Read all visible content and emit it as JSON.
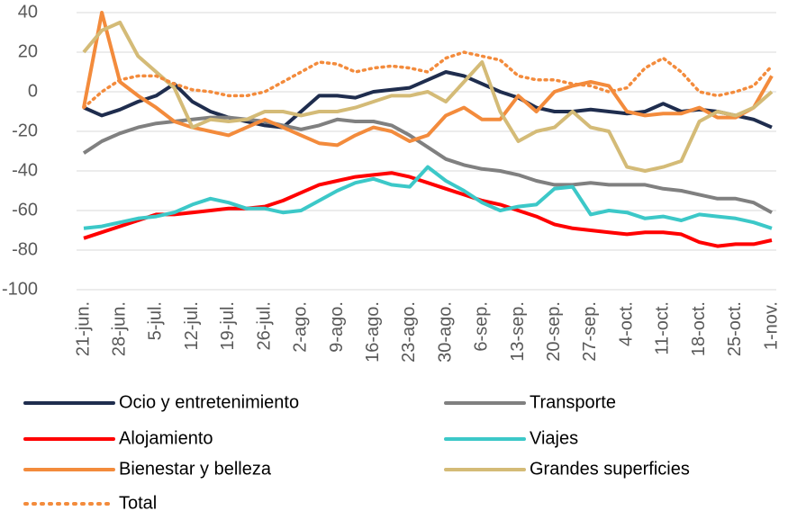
{
  "chart_data": {
    "type": "line",
    "categories": [
      "21-jun.",
      null,
      "28-jun.",
      null,
      "5-jul.",
      null,
      "12-jul.",
      null,
      "19-jul.",
      null,
      "26-jul.",
      null,
      "2-ago.",
      null,
      "9-ago.",
      null,
      "16-ago.",
      null,
      "23-ago.",
      null,
      "30-ago.",
      null,
      "6-sep.",
      null,
      "13-sep.",
      null,
      "20-sep.",
      null,
      "27-sep.",
      null,
      "4-oct.",
      null,
      "11-oct.",
      null,
      "18-oct.",
      null,
      "25-oct.",
      null,
      "1-nov."
    ],
    "ylim": [
      -100,
      40
    ],
    "yticks": [
      -100,
      -80,
      -60,
      -40,
      -20,
      0,
      20,
      40
    ],
    "grid": true,
    "series": [
      {
        "name": "Ocio y entretenimiento",
        "color": "#1f2d4e",
        "values": [
          -8,
          -12,
          -9,
          -5,
          -2,
          4,
          -5,
          -10,
          -13,
          -15,
          -17,
          -18,
          -10,
          -2,
          -2,
          -3,
          0,
          1,
          2,
          6,
          10,
          8,
          4,
          0,
          -3,
          -8,
          -10,
          -10,
          -9,
          -10,
          -11,
          -10,
          -6,
          -10,
          -9,
          -10,
          -12,
          -14,
          -18
        ]
      },
      {
        "name": "Transporte",
        "color": "#808080",
        "values": [
          -31,
          -25,
          -21,
          -18,
          -16,
          -15,
          -14,
          -13,
          -13,
          -14,
          -15,
          -17,
          -19,
          -17,
          -14,
          -15,
          -15,
          -17,
          -22,
          -28,
          -34,
          -37,
          -39,
          -40,
          -42,
          -45,
          -47,
          -47,
          -46,
          -47,
          -47,
          -47,
          -49,
          -50,
          -52,
          -54,
          -54,
          -56,
          -61
        ]
      },
      {
        "name": "Alojamiento",
        "color": "#ff0000",
        "values": [
          -74,
          -71,
          -68,
          -65,
          -62,
          -62,
          -61,
          -60,
          -59,
          -59,
          -58,
          -55,
          -51,
          -47,
          -45,
          -43,
          -42,
          -41,
          -43,
          -46,
          -49,
          -52,
          -55,
          -57,
          -60,
          -63,
          -67,
          -69,
          -70,
          -71,
          -72,
          -71,
          -71,
          -72,
          -76,
          -78,
          -77,
          -77,
          -75
        ]
      },
      {
        "name": "Viajes",
        "color": "#3cc8c8",
        "values": [
          -69,
          -68,
          -66,
          -64,
          -63,
          -61,
          -57,
          -54,
          -56,
          -59,
          -59,
          -61,
          -60,
          -55,
          -50,
          -46,
          -44,
          -47,
          -48,
          -38,
          -45,
          -50,
          -56,
          -60,
          -58,
          -57,
          -49,
          -48,
          -62,
          -60,
          -61,
          -64,
          -63,
          -65,
          -62,
          -63,
          -64,
          -66,
          -69
        ]
      },
      {
        "name": "Bienestar y belleza",
        "color": "#f38b3c",
        "values": [
          -8,
          40,
          5,
          -2,
          -8,
          -15,
          -18,
          -20,
          -22,
          -18,
          -14,
          -18,
          -22,
          -26,
          -27,
          -22,
          -18,
          -20,
          -25,
          -22,
          -12,
          -8,
          -14,
          -14,
          -2,
          -10,
          0,
          3,
          5,
          3,
          -10,
          -12,
          -11,
          -11,
          -8,
          -13,
          -13,
          -8,
          8
        ]
      },
      {
        "name": "Grandes superficies",
        "color": "#d4bb77",
        "values": [
          20,
          31,
          35,
          18,
          10,
          2,
          -18,
          -14,
          -15,
          -14,
          -10,
          -10,
          -12,
          -10,
          -10,
          -8,
          -5,
          -2,
          -2,
          0,
          -5,
          5,
          15,
          -10,
          -25,
          -20,
          -18,
          -10,
          -18,
          -20,
          -38,
          -40,
          -38,
          -35,
          -15,
          -10,
          -12,
          -8,
          0
        ]
      },
      {
        "name": "Total",
        "color": "#f38b3c",
        "style": "dotted",
        "values": [
          -8,
          0,
          6,
          8,
          8,
          4,
          1,
          0,
          -2,
          -2,
          0,
          5,
          10,
          15,
          14,
          10,
          12,
          13,
          12,
          10,
          17,
          20,
          18,
          16,
          8,
          6,
          6,
          4,
          3,
          0,
          2,
          12,
          17,
          10,
          0,
          -2,
          0,
          3,
          13
        ]
      }
    ]
  }
}
